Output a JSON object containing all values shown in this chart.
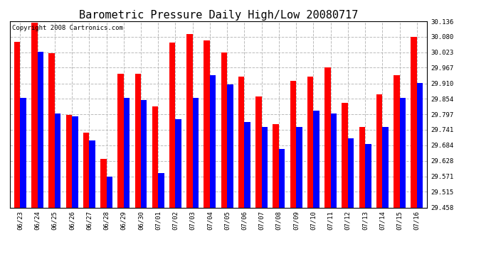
{
  "title": "Barometric Pressure Daily High/Low 20080717",
  "copyright": "Copyright 2008 Cartronics.com",
  "categories": [
    "06/23",
    "06/24",
    "06/25",
    "06/26",
    "06/27",
    "06/28",
    "06/29",
    "06/30",
    "07/01",
    "07/02",
    "07/03",
    "07/04",
    "07/05",
    "07/06",
    "07/07",
    "07/08",
    "07/09",
    "07/10",
    "07/11",
    "07/12",
    "07/13",
    "07/14",
    "07/15",
    "07/16"
  ],
  "highs": [
    30.06,
    30.13,
    30.02,
    29.795,
    29.73,
    29.636,
    29.945,
    29.945,
    29.825,
    30.058,
    30.09,
    30.065,
    30.023,
    29.935,
    29.862,
    29.762,
    29.918,
    29.935,
    29.967,
    29.84,
    29.752,
    29.87,
    29.94,
    30.08
  ],
  "lows": [
    29.858,
    30.025,
    29.8,
    29.79,
    29.703,
    29.571,
    29.858,
    29.85,
    29.582,
    29.78,
    29.858,
    29.94,
    29.905,
    29.768,
    29.75,
    29.67,
    29.75,
    29.81,
    29.8,
    29.71,
    29.688,
    29.75,
    29.858,
    29.912
  ],
  "bar_color_high": "#ff0000",
  "bar_color_low": "#0000ff",
  "background_color": "#ffffff",
  "plot_bg_color": "#ffffff",
  "grid_color": "#bbbbbb",
  "ymin": 29.458,
  "ymax": 30.136,
  "yticks": [
    29.458,
    29.515,
    29.571,
    29.628,
    29.684,
    29.741,
    29.797,
    29.854,
    29.91,
    29.967,
    30.023,
    30.08,
    30.136
  ],
  "title_fontsize": 11,
  "tick_fontsize": 6.5,
  "copyright_fontsize": 6.5
}
